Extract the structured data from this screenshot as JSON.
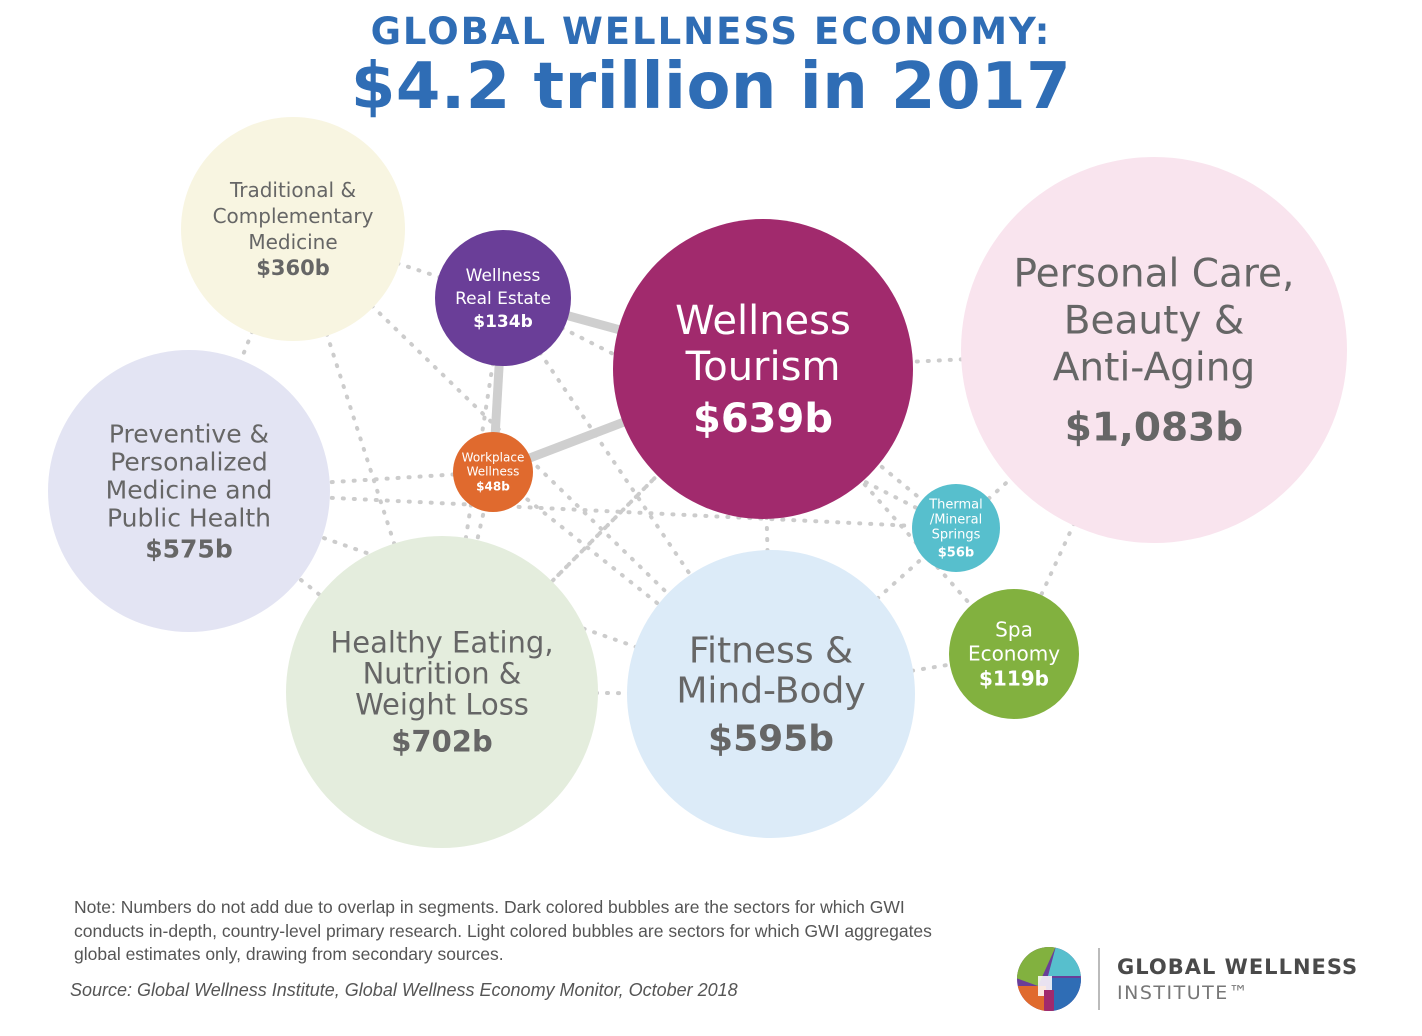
{
  "title_line1": "GLOBAL WELLNESS ECONOMY:",
  "title_line2": "$4.2 trillion in 2017",
  "colors": {
    "title": "#2f6db5",
    "wellness_tourism": "#a12a6d",
    "wellness_real_estate": "#6a3e98",
    "workplace_wellness": "#e06a2e",
    "thermal_mineral_springs": "#57bfcd",
    "spa_economy": "#82b13f",
    "personal_care": "#f9e4ee",
    "traditional_medicine": "#f8f5e1",
    "preventive_medicine": "#e3e4f3",
    "healthy_eating": "#e4eddd",
    "fitness": "#dcebf8",
    "connector": "#cccccc"
  },
  "chart_data": {
    "type": "bubble",
    "title": "GLOBAL WELLNESS ECONOMY: $4.2 trillion in 2017",
    "unit": "$ billions",
    "bubbles": [
      {
        "label": "Traditional & Complementary Medicine",
        "display_value": "$360b",
        "value": 360,
        "style": "light"
      },
      {
        "label": "Wellness Real Estate",
        "display_value": "$134b",
        "value": 134,
        "style": "dark"
      },
      {
        "label": "Wellness Tourism",
        "display_value": "$639b",
        "value": 639,
        "style": "dark"
      },
      {
        "label": "Personal Care, Beauty & Anti-Aging",
        "display_value": "$1,083b",
        "value": 1083,
        "style": "light"
      },
      {
        "label": "Preventive & Personalized Medicine and Public Health",
        "display_value": "$575b",
        "value": 575,
        "style": "light"
      },
      {
        "label": "Workplace Wellness",
        "display_value": "$48b",
        "value": 48,
        "style": "dark"
      },
      {
        "label": "Thermal /Mineral Springs",
        "display_value": "$56b",
        "value": 56,
        "style": "dark"
      },
      {
        "label": "Healthy Eating, Nutrition & Weight Loss",
        "display_value": "$702b",
        "value": 702,
        "style": "light"
      },
      {
        "label": "Fitness & Mind-Body",
        "display_value": "$595b",
        "value": 595,
        "style": "light"
      },
      {
        "label": "Spa Economy",
        "display_value": "$119b",
        "value": 119,
        "style": "dark"
      }
    ]
  },
  "bubbles_text": {
    "traditional": {
      "lines": [
        "Traditional &",
        "Complementary",
        "Medicine"
      ],
      "value": "$360b"
    },
    "real_estate": {
      "lines": [
        "Wellness",
        "Real Estate"
      ],
      "value": "$134b"
    },
    "tourism": {
      "lines": [
        "Wellness",
        "Tourism"
      ],
      "value": "$639b"
    },
    "personal_care": {
      "lines": [
        "Personal Care,",
        "Beauty &",
        "Anti-Aging"
      ],
      "value": "$1,083b"
    },
    "preventive": {
      "lines": [
        "Preventive &",
        "Personalized",
        "Medicine and",
        "Public Health"
      ],
      "value": "$575b"
    },
    "workplace": {
      "lines": [
        "Workplace",
        "Wellness"
      ],
      "value": "$48b"
    },
    "thermal": {
      "lines": [
        "Thermal",
        "/Mineral",
        "Springs"
      ],
      "value": "$56b"
    },
    "healthy_eating": {
      "lines": [
        "Healthy Eating,",
        "Nutrition &",
        "Weight Loss"
      ],
      "value": "$702b"
    },
    "fitness": {
      "lines": [
        "Fitness &",
        "Mind-Body"
      ],
      "value": "$595b"
    },
    "spa": {
      "lines": [
        "Spa",
        "Economy"
      ],
      "value": "$119b"
    }
  },
  "note": "Note: Numbers do not add due to overlap in segments. Dark colored bubbles are the sectors for which GWI conducts in-depth, country-level primary research. Light colored bubbles are sectors for which GWI aggregates global estimates only, drawing from secondary sources.",
  "source": "Source: Global Wellness Institute, Global Wellness Economy Monitor, October 2018",
  "org": {
    "line1": "GLOBAL WELLNESS",
    "line2": "INSTITUTE™"
  }
}
